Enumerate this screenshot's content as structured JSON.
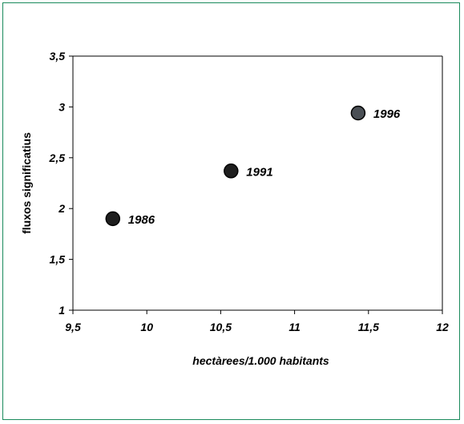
{
  "chart_data": {
    "type": "scatter",
    "xlabel": "hectàrees/1.000 habitants",
    "ylabel": "fluxos significatius",
    "xlim": [
      9.5,
      12
    ],
    "ylim": [
      1,
      3.5
    ],
    "x_ticks": [
      "9,5",
      "10",
      "10,5",
      "11",
      "11,5",
      "12"
    ],
    "y_ticks": [
      "1",
      "1,5",
      "2",
      "2,5",
      "3",
      "3,5"
    ],
    "grid": false,
    "points": [
      {
        "label": "1986",
        "x": 9.77,
        "y": 1.9,
        "color": "#1e1e1e"
      },
      {
        "label": "1991",
        "x": 10.57,
        "y": 2.37,
        "color": "#1e1e1e"
      },
      {
        "label": "1996",
        "x": 11.43,
        "y": 2.94,
        "color": "#4a4f55"
      }
    ]
  }
}
